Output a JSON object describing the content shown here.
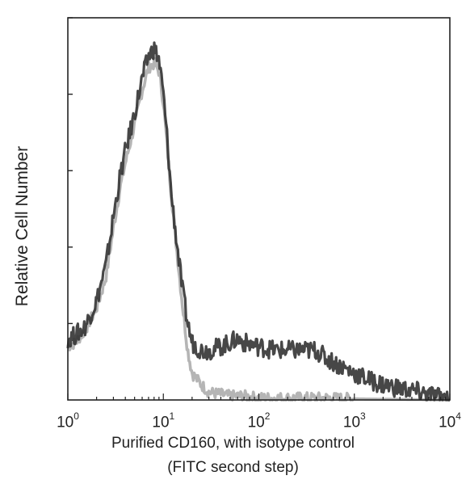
{
  "chart_data": {
    "type": "area",
    "title": "",
    "ylabel": "Relative Cell Number",
    "xlabel": "Purified CD160, with isotype control",
    "xlabel_line2": "(FITC second step)",
    "x_scale": "log",
    "xlim": [
      1,
      10000
    ],
    "ylim": [
      0,
      100
    ],
    "grid": false,
    "legend": "none",
    "x_ticks": [
      {
        "value": 1,
        "base": "10",
        "exp": "0"
      },
      {
        "value": 10,
        "base": "10",
        "exp": "1"
      },
      {
        "value": 100,
        "base": "10",
        "exp": "2"
      },
      {
        "value": 1000,
        "base": "10",
        "exp": "3"
      },
      {
        "value": 10000,
        "base": "10",
        "exp": "4"
      }
    ],
    "series": [
      {
        "color": "#a8a8a8",
        "x": [
          1,
          1.2,
          1.5,
          2,
          2.5,
          3,
          3.5,
          4,
          5,
          6,
          7,
          8,
          9,
          10,
          11,
          12,
          14,
          16,
          18,
          20,
          25,
          30,
          40,
          50,
          70,
          100,
          200,
          500,
          1000,
          2000,
          5000,
          10000
        ],
        "y": [
          14,
          15,
          18,
          24,
          32,
          45,
          55,
          62,
          72,
          81,
          87,
          88,
          86,
          78,
          66,
          55,
          38,
          24,
          13,
          7,
          4,
          2,
          1.5,
          1,
          1,
          0.5,
          0.5,
          0.5,
          0.3,
          0.2,
          0.1,
          0
        ]
      },
      {
        "color": "#333333",
        "x": [
          1,
          1.2,
          1.5,
          2,
          2.5,
          3,
          3.5,
          4,
          5,
          6,
          7,
          8,
          9,
          10,
          11,
          12,
          14,
          16,
          18,
          20,
          25,
          30,
          40,
          50,
          60,
          70,
          100,
          150,
          200,
          300,
          400,
          500,
          700,
          1000,
          1500,
          2000,
          3000,
          5000,
          7000,
          10000
        ],
        "y": [
          16,
          17,
          19,
          26,
          35,
          48,
          58,
          65,
          75,
          84,
          90,
          92,
          89,
          80,
          68,
          55,
          40,
          28,
          20,
          15,
          13,
          13,
          14,
          15,
          16,
          15,
          14,
          13,
          13,
          13,
          13,
          11,
          9,
          7,
          5,
          4,
          3,
          2,
          1,
          0.5
        ]
      }
    ]
  }
}
